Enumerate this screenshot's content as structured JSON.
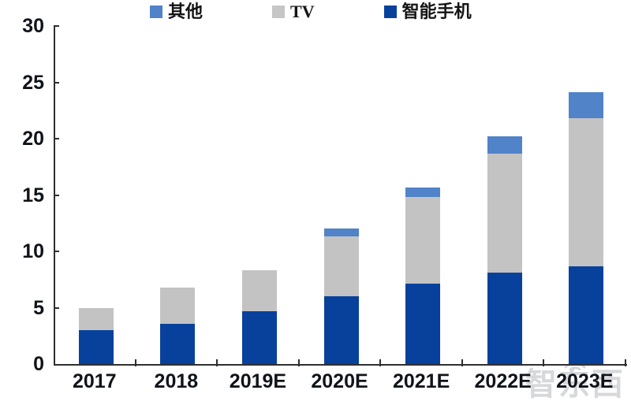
{
  "legend": {
    "items": [
      {
        "label": "其他",
        "color": "#5083C8"
      },
      {
        "label": "TV",
        "color": "#C6C6C6"
      },
      {
        "label": "智能手机",
        "color": "#08419C"
      }
    ]
  },
  "chart_data": {
    "type": "bar",
    "stacked": true,
    "title": "",
    "xlabel": "",
    "ylabel": "",
    "categories": [
      "2017",
      "2018",
      "2019E",
      "2020E",
      "2021E",
      "2022E",
      "2023E"
    ],
    "series": [
      {
        "name": "智能手机",
        "color": "#08419C",
        "values": [
          3.0,
          3.6,
          4.7,
          6.0,
          7.1,
          8.1,
          8.7
        ]
      },
      {
        "name": "TV",
        "color": "#C3C3C3",
        "values": [
          2.0,
          3.2,
          3.6,
          5.3,
          7.7,
          10.6,
          13.1
        ]
      },
      {
        "name": "其他",
        "color": "#5083C8",
        "values": [
          0,
          0,
          0,
          0.7,
          0.9,
          1.5,
          2.3
        ]
      }
    ],
    "totals": [
      5.0,
      6.8,
      8.3,
      12.0,
      15.7,
      20.2,
      24.1
    ],
    "ylim": [
      0,
      30
    ],
    "yticks": [
      0,
      5,
      10,
      15,
      20,
      25,
      30
    ],
    "grid": false,
    "legend_position": "top"
  },
  "watermark": {
    "text": "智东西"
  }
}
